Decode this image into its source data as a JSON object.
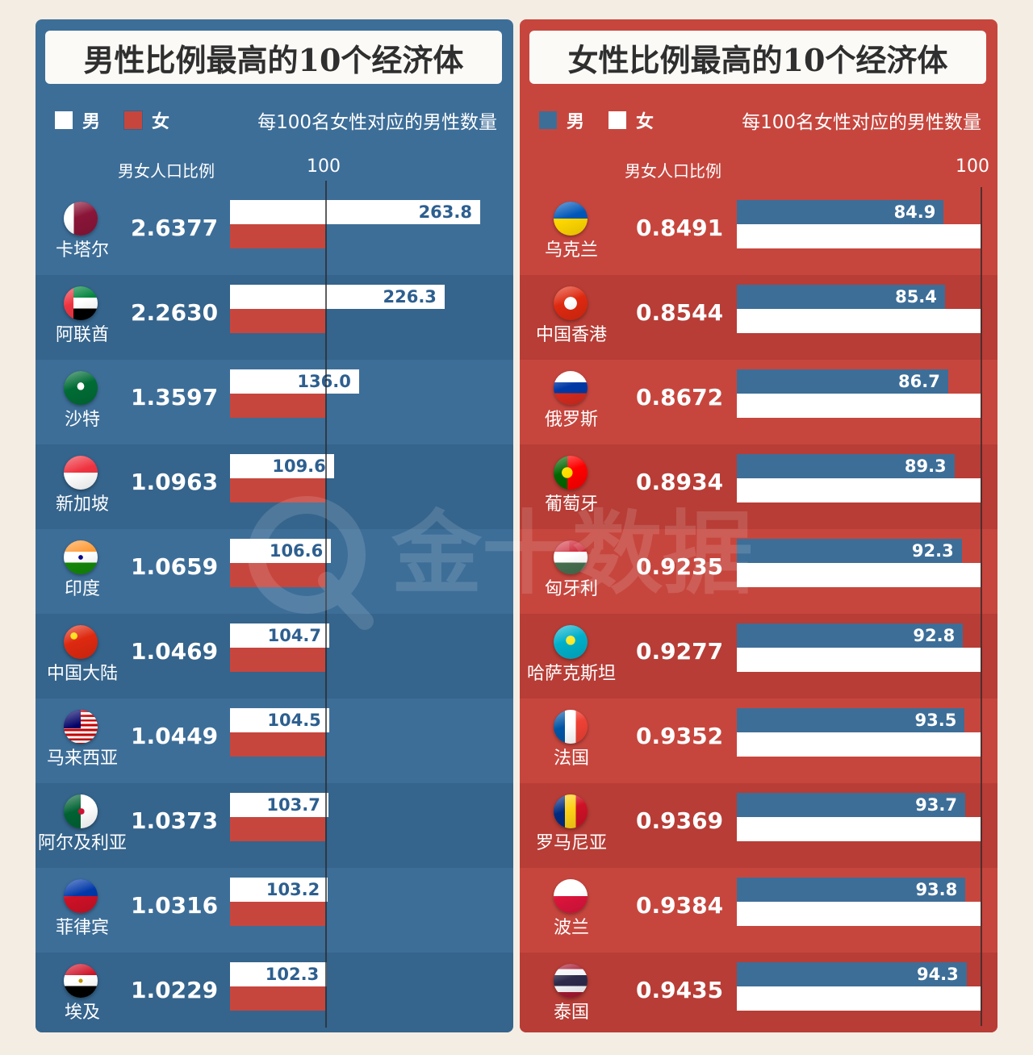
{
  "colors": {
    "panel_blue": "#3d6e98",
    "panel_red": "#c6463e",
    "bar_white": "#ffffff",
    "bar_blue": "#3d6e98",
    "bar_red": "#c6463e"
  },
  "watermark": "金十数据",
  "chart_data": [
    {
      "type": "bar",
      "title": "男性比例最高的10个经济体",
      "legend": [
        {
          "label": "男",
          "color": "#ffffff"
        },
        {
          "label": "女",
          "color": "#c6463e"
        }
      ],
      "note": "每100名女性对应的男性数量",
      "ratio_header": "男女人口比例",
      "axis_label": "100",
      "reference": 100,
      "categories": [
        "卡塔尔",
        "阿联酋",
        "沙特",
        "新加坡",
        "印度",
        "中国大陆",
        "马来西亚",
        "阿尔及利亚",
        "菲律宾",
        "埃及"
      ],
      "ratios": [
        "2.6377",
        "2.2630",
        "1.3597",
        "1.0963",
        "1.0659",
        "1.0469",
        "1.0449",
        "1.0373",
        "1.0316",
        "1.0229"
      ],
      "series": [
        {
          "name": "男",
          "values": [
            263.8,
            226.3,
            136.0,
            109.6,
            106.6,
            104.7,
            104.5,
            103.7,
            103.2,
            102.3
          ],
          "labels": [
            "263.8",
            "226.3",
            "136.0",
            "109.6",
            "106.6",
            "104.7",
            "104.5",
            "103.7",
            "103.2",
            "102.3"
          ]
        },
        {
          "name": "女",
          "values": [
            100,
            100,
            100,
            100,
            100,
            100,
            100,
            100,
            100,
            100
          ]
        }
      ]
    },
    {
      "type": "bar",
      "title": "女性比例最高的10个经济体",
      "legend": [
        {
          "label": "男",
          "color": "#3d6e98"
        },
        {
          "label": "女",
          "color": "#ffffff"
        }
      ],
      "note": "每100名女性对应的男性数量",
      "ratio_header": "男女人口比例",
      "axis_label": "100",
      "reference": 100,
      "categories": [
        "乌克兰",
        "中国香港",
        "俄罗斯",
        "葡萄牙",
        "匈牙利",
        "哈萨克斯坦",
        "法国",
        "罗马尼亚",
        "波兰",
        "泰国"
      ],
      "ratios": [
        "0.8491",
        "0.8544",
        "0.8672",
        "0.8934",
        "0.9235",
        "0.9277",
        "0.9352",
        "0.9369",
        "0.9384",
        "0.9435"
      ],
      "series": [
        {
          "name": "男",
          "values": [
            84.9,
            85.4,
            86.7,
            89.3,
            92.3,
            92.8,
            93.5,
            93.7,
            93.8,
            94.3
          ],
          "labels": [
            "84.9",
            "85.4",
            "86.7",
            "89.3",
            "92.3",
            "92.8",
            "93.5",
            "93.7",
            "93.8",
            "94.3"
          ]
        },
        {
          "name": "女",
          "values": [
            100,
            100,
            100,
            100,
            100,
            100,
            100,
            100,
            100,
            100
          ]
        }
      ]
    }
  ]
}
